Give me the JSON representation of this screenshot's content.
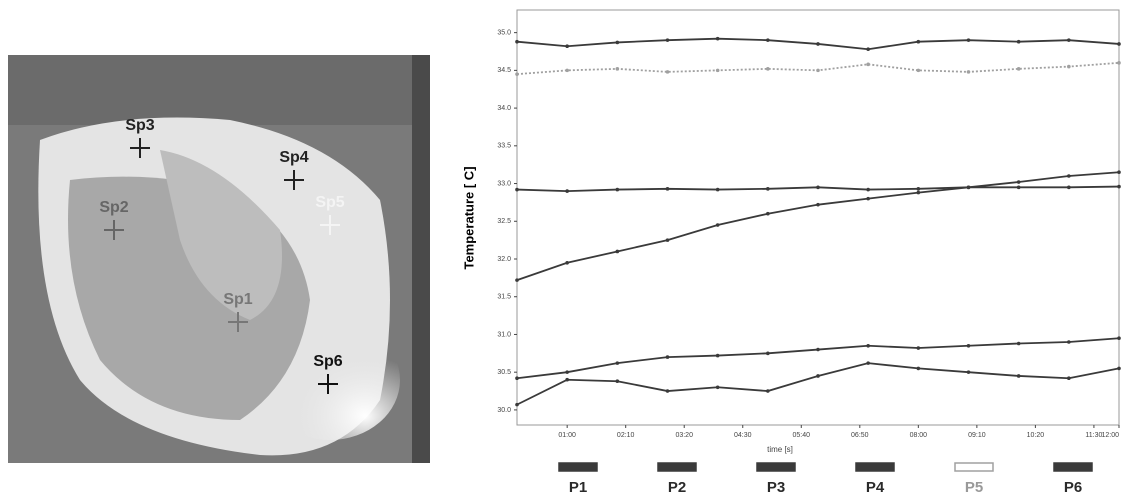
{
  "thermal_image": {
    "spots": [
      "Sp1",
      "Sp2",
      "Sp3",
      "Sp4",
      "Sp5",
      "Sp6"
    ]
  },
  "chart_data": {
    "type": "line",
    "y_label": "Temperature [ C]",
    "x_label": "time [s]",
    "x": [
      0,
      60,
      120,
      180,
      240,
      300,
      360,
      420,
      480,
      540,
      600,
      660,
      720
    ],
    "xlim": [
      0,
      720
    ],
    "xticks": [
      {
        "value": 60,
        "label": "01:00"
      },
      {
        "value": 130,
        "label": "02:10"
      },
      {
        "value": 200,
        "label": "03:20"
      },
      {
        "value": 270,
        "label": "04:30"
      },
      {
        "value": 340,
        "label": "05:40"
      },
      {
        "value": 410,
        "label": "06:50"
      },
      {
        "value": 480,
        "label": "08:00"
      },
      {
        "value": 550,
        "label": "09:10"
      },
      {
        "value": 620,
        "label": "10:20"
      },
      {
        "value": 690,
        "label": "11:30"
      },
      {
        "value": 720,
        "label": "12:00"
      }
    ],
    "ylim": [
      29.8,
      35.3
    ],
    "yticks": [
      {
        "value": 30,
        "label": "30.0"
      },
      30.5,
      {
        "value": 31,
        "label": "31.0"
      },
      31.5,
      {
        "value": 32,
        "label": "32.0"
      },
      32.5,
      {
        "value": 33,
        "label": "33.0"
      },
      33.5,
      {
        "value": 34,
        "label": "34.0"
      },
      34.5,
      {
        "value": 35,
        "label": "35.0"
      }
    ],
    "series": [
      {
        "name": "P1",
        "color": "#3a3a3a",
        "values": [
          31.72,
          31.95,
          32.1,
          32.25,
          32.45,
          32.6,
          32.72,
          32.8,
          32.88,
          32.95,
          33.02,
          33.1,
          33.15
        ]
      },
      {
        "name": "P2",
        "color": "#3a3a3a",
        "values": [
          32.92,
          32.9,
          32.92,
          32.93,
          32.92,
          32.93,
          32.95,
          32.92,
          32.93,
          32.95,
          32.95,
          32.95,
          32.96
        ]
      },
      {
        "name": "P3",
        "color": "#3a3a3a",
        "values": [
          34.88,
          34.82,
          34.87,
          34.9,
          34.92,
          34.9,
          34.85,
          34.78,
          34.88,
          34.9,
          34.88,
          34.9,
          34.85
        ]
      },
      {
        "name": "P4",
        "color": "#3a3a3a",
        "values": [
          30.42,
          30.5,
          30.62,
          30.7,
          30.72,
          30.75,
          30.8,
          30.85,
          30.82,
          30.85,
          30.88,
          30.9,
          30.95
        ]
      },
      {
        "name": "P5",
        "color": "#a0a0a0",
        "values": [
          34.45,
          34.5,
          34.52,
          34.48,
          34.5,
          34.52,
          34.5,
          34.58,
          34.5,
          34.48,
          34.52,
          34.55,
          34.6
        ]
      },
      {
        "name": "P6",
        "color": "#3a3a3a",
        "values": [
          30.07,
          30.4,
          30.38,
          30.25,
          30.3,
          30.25,
          30.45,
          30.62,
          30.55,
          30.5,
          30.45,
          30.42,
          30.55
        ]
      }
    ]
  }
}
